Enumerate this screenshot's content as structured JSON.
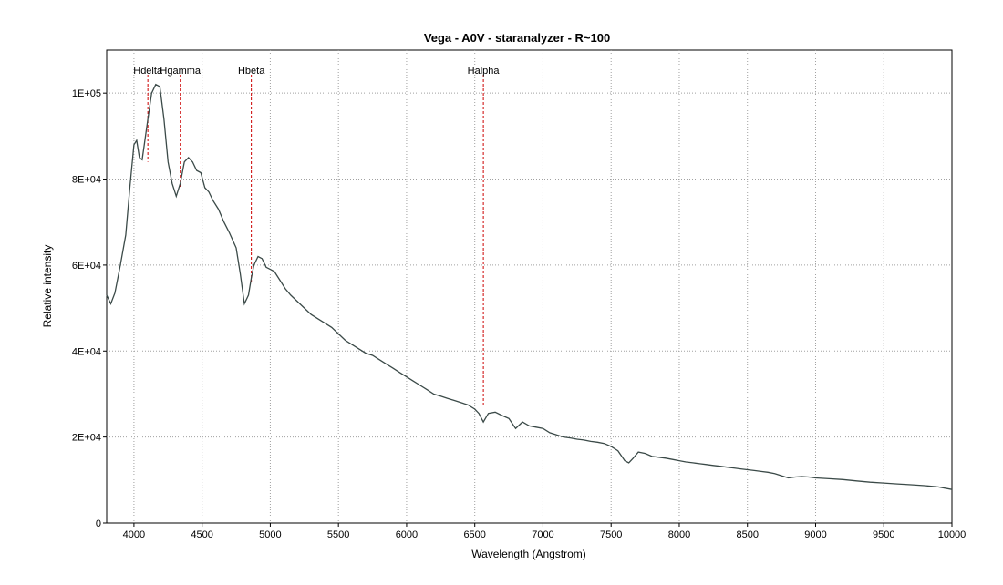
{
  "chart_data": {
    "type": "line",
    "title": "Vega - A0V - staranalyzer - R~100",
    "xlabel": "Wavelength (Angstrom)",
    "ylabel": "Relative intensity",
    "xlim": [
      3800,
      10000
    ],
    "ylim": [
      0,
      110000
    ],
    "grid": true,
    "x_ticks": [
      4000,
      4500,
      5000,
      5500,
      6000,
      6500,
      7000,
      7500,
      8000,
      8500,
      9000,
      9500,
      10000
    ],
    "x_tick_labels": [
      "4000",
      "4500",
      "5000",
      "5500",
      "6000",
      "6500",
      "7000",
      "7500",
      "8000",
      "8500",
      "9000",
      "9500",
      "10000"
    ],
    "y_ticks": [
      0,
      20000,
      40000,
      60000,
      80000,
      100000
    ],
    "y_tick_labels": [
      "0",
      "2E+04",
      "4E+04",
      "6E+04",
      "8E+04",
      "1E+05"
    ],
    "line_color": "#3b4a48",
    "marker_color": "#cc0000",
    "reference_lines": [
      {
        "label": "Hdelta",
        "x": 4102,
        "y_end": 84000
      },
      {
        "label": "Hgamma",
        "x": 4340,
        "y_end": 78000
      },
      {
        "label": "Hbeta",
        "x": 4861,
        "y_end": 56000
      },
      {
        "label": "Halpha",
        "x": 6563,
        "y_end": 27000
      }
    ],
    "series": [
      {
        "x": [
          3800,
          3830,
          3860,
          3900,
          3940,
          3970,
          4000,
          4020,
          4040,
          4060,
          4080,
          4102,
          4130,
          4160,
          4190,
          4220,
          4250,
          4280,
          4310,
          4340,
          4370,
          4400,
          4430,
          4460,
          4490,
          4520,
          4550,
          4580,
          4620,
          4660,
          4700,
          4750,
          4780,
          4810,
          4840,
          4861,
          4880,
          4910,
          4940,
          4970,
          5000,
          5030,
          5070,
          5110,
          5150,
          5200,
          5250,
          5300,
          5350,
          5400,
          5450,
          5500,
          5550,
          5600,
          5650,
          5700,
          5750,
          5800,
          5850,
          5900,
          5950,
          6000,
          6050,
          6100,
          6150,
          6200,
          6250,
          6300,
          6350,
          6400,
          6450,
          6500,
          6530,
          6563,
          6600,
          6650,
          6700,
          6750,
          6800,
          6850,
          6900,
          6950,
          7000,
          7050,
          7100,
          7150,
          7200,
          7250,
          7300,
          7350,
          7400,
          7450,
          7500,
          7550,
          7600,
          7630,
          7660,
          7700,
          7750,
          7800,
          7850,
          7900,
          7950,
          8000,
          8050,
          8100,
          8150,
          8200,
          8250,
          8300,
          8350,
          8400,
          8450,
          8500,
          8550,
          8600,
          8650,
          8700,
          8750,
          8800,
          8850,
          8900,
          8950,
          9000,
          9100,
          9200,
          9300,
          9400,
          9500,
          9600,
          9700,
          9800,
          9900,
          10000
        ],
        "y": [
          53000,
          51000,
          53500,
          60000,
          67000,
          78000,
          88000,
          89000,
          85000,
          84500,
          89000,
          94000,
          100000,
          102000,
          101500,
          94000,
          84000,
          79000,
          76000,
          79000,
          84000,
          85000,
          84000,
          82000,
          81500,
          78000,
          77000,
          75000,
          73000,
          70000,
          67500,
          64000,
          58000,
          51000,
          53000,
          57000,
          60000,
          62000,
          61500,
          59500,
          59000,
          58500,
          56500,
          54500,
          53000,
          51500,
          50000,
          48500,
          47500,
          46500,
          45500,
          44000,
          42500,
          41500,
          40500,
          39500,
          39000,
          38000,
          37000,
          36000,
          35000,
          34000,
          33000,
          32000,
          31000,
          30000,
          29500,
          29000,
          28500,
          28000,
          27500,
          26500,
          25500,
          23500,
          25500,
          25800,
          25000,
          24300,
          22000,
          23500,
          22600,
          22300,
          22000,
          21000,
          20500,
          20000,
          19800,
          19500,
          19300,
          19000,
          18800,
          18500,
          17800,
          16800,
          14500,
          14000,
          15000,
          16500,
          16200,
          15500,
          15300,
          15100,
          14800,
          14500,
          14200,
          14000,
          13800,
          13600,
          13400,
          13200,
          13000,
          12800,
          12600,
          12400,
          12200,
          12000,
          11800,
          11500,
          11000,
          10500,
          10700,
          10800,
          10700,
          10500,
          10300,
          10100,
          9800,
          9500,
          9300,
          9100,
          8900,
          8700,
          8400,
          7800
        ]
      }
    ]
  }
}
